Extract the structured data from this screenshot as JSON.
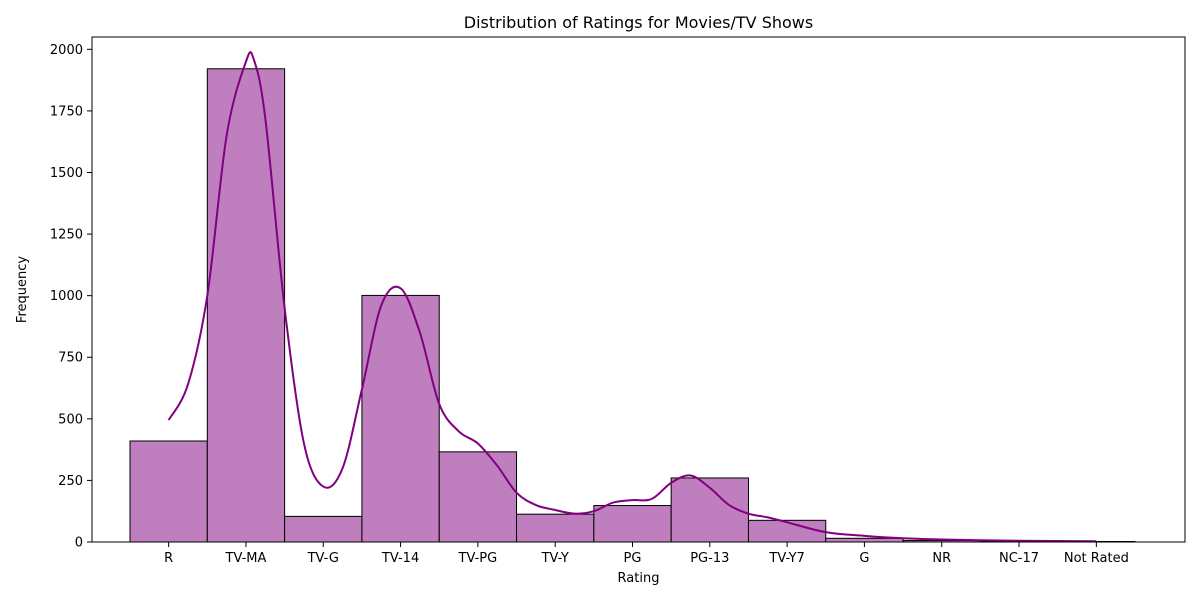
{
  "chart_data": {
    "type": "bar",
    "title": "Distribution of Ratings for Movies/TV Shows",
    "xlabel": "Rating",
    "ylabel": "Frequency",
    "categories": [
      "R",
      "TV-MA",
      "TV-G",
      "TV-14",
      "TV-PG",
      "TV-Y",
      "PG",
      "PG-13",
      "TV-Y7",
      "G",
      "NR",
      "NC-17",
      "Not Rated"
    ],
    "values": [
      410,
      1921,
      104,
      1001,
      366,
      113,
      148,
      260,
      88,
      15,
      6,
      3,
      2
    ],
    "ylim": [
      0,
      2050
    ],
    "yticks": [
      0,
      250,
      500,
      750,
      1000,
      1250,
      1500,
      1750,
      2000
    ],
    "kde": {
      "x": [
        0,
        0.25,
        0.5,
        0.75,
        1.0,
        1.1,
        1.25,
        1.5,
        1.75,
        2.0,
        2.25,
        2.5,
        2.75,
        3.0,
        3.25,
        3.5,
        3.75,
        4.0,
        4.25,
        4.5,
        4.75,
        5.0,
        5.25,
        5.5,
        5.75,
        6.0,
        6.25,
        6.5,
        6.75,
        7.0,
        7.25,
        7.5,
        7.75,
        8.0,
        8.5,
        9.0,
        9.5,
        10.0,
        10.5,
        11.0,
        11.5,
        12.0
      ],
      "y": [
        495,
        640,
        1000,
        1650,
        1950,
        1960,
        1720,
        950,
        400,
        225,
        300,
        620,
        960,
        1030,
        850,
        560,
        450,
        400,
        310,
        200,
        150,
        130,
        115,
        125,
        160,
        170,
        175,
        240,
        270,
        220,
        150,
        115,
        100,
        80,
        40,
        25,
        15,
        10,
        7,
        5,
        4,
        3
      ]
    },
    "bar_color": "#bf7fbf",
    "edge_color": "#000000",
    "kde_color": "#800080",
    "grid": false,
    "legend": "none"
  }
}
